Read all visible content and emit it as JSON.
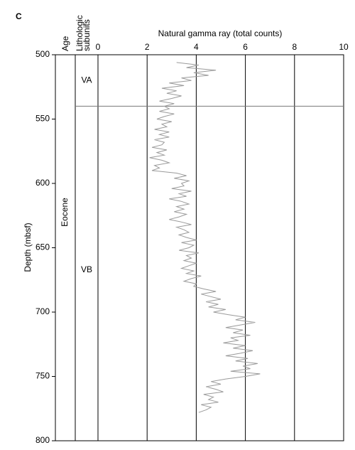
{
  "chart_data": {
    "type": "line",
    "panel_label": "C",
    "title": "Natural gamma ray (total counts)",
    "ylabel": "Depth (mbsf)",
    "age_header": "Age",
    "subunit_header": "Lithologic subunits",
    "age": {
      "name": "Eocene",
      "top": 500,
      "bottom": 800
    },
    "subunits": [
      {
        "name": "VA",
        "top": 500,
        "bottom": 540
      },
      {
        "name": "VB",
        "top": 540,
        "bottom": 800
      }
    ],
    "xlim": [
      0,
      10
    ],
    "xticks": [
      0,
      2,
      4,
      6,
      8,
      10
    ],
    "ylim": [
      500,
      800
    ],
    "yticks": [
      500,
      550,
      600,
      650,
      700,
      750,
      800
    ],
    "grid": true,
    "color": "#9a9a9a",
    "depth": [
      506,
      508,
      510,
      512,
      514,
      516,
      518,
      520,
      522,
      524,
      526,
      528,
      530,
      532,
      534,
      536,
      538,
      540,
      542,
      544,
      546,
      548,
      550,
      552,
      554,
      556,
      558,
      560,
      562,
      564,
      566,
      568,
      570,
      572,
      574,
      576,
      578,
      580,
      582,
      584,
      586,
      588,
      590,
      592,
      594,
      596,
      598,
      600,
      602,
      604,
      606,
      608,
      610,
      612,
      614,
      616,
      618,
      620,
      622,
      624,
      626,
      628,
      630,
      632,
      634,
      636,
      638,
      640,
      642,
      644,
      646,
      648,
      650,
      652,
      654,
      656,
      658,
      660,
      662,
      664,
      666,
      668,
      670,
      672,
      674,
      676,
      678,
      680,
      682,
      684,
      686,
      688,
      690,
      692,
      694,
      696,
      698,
      700,
      702,
      704,
      706,
      708,
      710,
      712,
      714,
      716,
      718,
      720,
      722,
      724,
      726,
      728,
      730,
      732,
      734,
      736,
      738,
      740,
      742,
      744,
      746,
      748,
      750,
      752,
      754,
      756,
      758,
      760,
      762,
      764,
      766,
      768,
      770,
      772,
      774,
      776,
      778
    ],
    "values": [
      3.2,
      4.1,
      3.6,
      4.8,
      3.9,
      4.5,
      3.4,
      3.8,
      2.9,
      3.5,
      2.6,
      3.2,
      2.8,
      3.4,
      3.0,
      2.5,
      3.1,
      2.7,
      2.9,
      2.5,
      3.1,
      2.7,
      2.4,
      3.0,
      2.6,
      2.8,
      2.3,
      2.9,
      2.5,
      2.9,
      2.3,
      2.7,
      2.6,
      2.2,
      2.8,
      2.4,
      2.7,
      2.1,
      2.6,
      2.9,
      2.3,
      2.5,
      2.2,
      3.2,
      3.6,
      3.1,
      3.7,
      3.4,
      3.5,
      3.0,
      3.8,
      3.3,
      3.6,
      2.9,
      3.4,
      3.7,
      3.2,
      3.5,
      3.1,
      3.6,
      3.3,
      2.9,
      3.4,
      3.8,
      3.2,
      3.5,
      3.7,
      3.3,
      3.6,
      4.0,
      3.4,
      3.9,
      3.7,
      3.3,
      4.1,
      3.6,
      3.8,
      3.5,
      4.0,
      3.7,
      3.4,
      3.9,
      3.6,
      4.2,
      3.8,
      3.5,
      4.0,
      3.9,
      4.3,
      4.8,
      4.2,
      4.6,
      5.0,
      4.4,
      4.9,
      4.5,
      5.2,
      4.7,
      5.3,
      6.0,
      5.6,
      6.4,
      5.8,
      5.2,
      5.9,
      5.5,
      6.2,
      5.4,
      5.7,
      5.1,
      6.0,
      5.5,
      6.3,
      5.8,
      5.2,
      6.1,
      5.6,
      6.5,
      5.9,
      6.2,
      5.4,
      6.6,
      6.0,
      5.2,
      4.6,
      5.0,
      4.4,
      4.8,
      5.1,
      4.3,
      4.7,
      4.5,
      4.9,
      4.2,
      4.6,
      4.4,
      4.1
    ]
  }
}
